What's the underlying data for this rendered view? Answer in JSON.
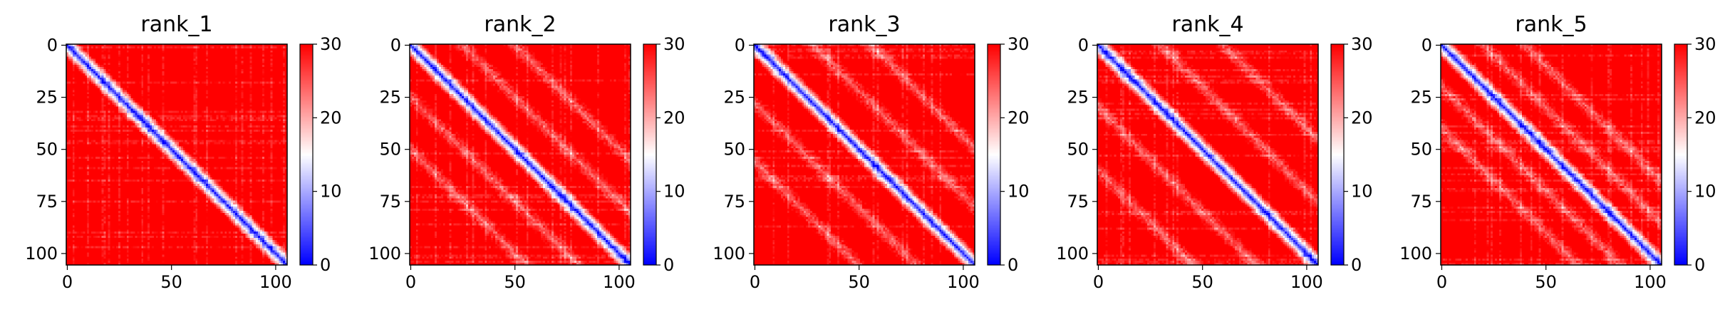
{
  "chart_data": [
    {
      "type": "heatmap",
      "title": "rank_1",
      "rows": 106,
      "cols": 106,
      "x_ticks": [
        0,
        50,
        100
      ],
      "y_ticks": [
        0,
        25,
        50,
        75,
        100
      ],
      "colorbar": {
        "min": 0,
        "max": 30,
        "ticks": [
          0,
          10,
          20,
          30
        ],
        "colormap": [
          "#0000ff",
          "#ffffff",
          "#ff0000"
        ]
      },
      "values_description_diag": "low (~0-5) along main diagonal, rising to ~30 off-diagonal",
      "band_width": 7.0,
      "secondary_band_offset": null
    },
    {
      "type": "heatmap",
      "title": "rank_2",
      "rows": 106,
      "cols": 106,
      "x_ticks": [
        0,
        50,
        100
      ],
      "y_ticks": [
        0,
        25,
        50,
        75,
        100
      ],
      "colorbar": {
        "min": 0,
        "max": 30,
        "ticks": [
          0,
          10,
          20,
          30
        ],
        "colormap": [
          "#0000ff",
          "#ffffff",
          "#ff0000"
        ]
      },
      "values_description_diag": "low along main diagonal with lighter parallel bands",
      "band_width": 7.0,
      "secondary_band_offset": 25
    },
    {
      "type": "heatmap",
      "title": "rank_3",
      "rows": 106,
      "cols": 106,
      "x_ticks": [
        0,
        50,
        100
      ],
      "y_ticks": [
        0,
        25,
        50,
        75,
        100
      ],
      "colorbar": {
        "min": 0,
        "max": 30,
        "ticks": [
          0,
          10,
          20,
          30
        ],
        "colormap": [
          "#0000ff",
          "#ffffff",
          "#ff0000"
        ]
      },
      "values_description_diag": "low along main diagonal with faint parallel bands",
      "band_width": 7.0,
      "secondary_band_offset": 28
    },
    {
      "type": "heatmap",
      "title": "rank_4",
      "rows": 106,
      "cols": 106,
      "x_ticks": [
        0,
        50,
        100
      ],
      "y_ticks": [
        0,
        25,
        50,
        75,
        100
      ],
      "colorbar": {
        "min": 0,
        "max": 30,
        "ticks": [
          0,
          10,
          20,
          30
        ],
        "colormap": [
          "#0000ff",
          "#ffffff",
          "#ff0000"
        ]
      },
      "values_description_diag": "low along main diagonal with faint parallel bands",
      "band_width": 7.0,
      "secondary_band_offset": 30
    },
    {
      "type": "heatmap",
      "title": "rank_5",
      "rows": 106,
      "cols": 106,
      "x_ticks": [
        0,
        50,
        100
      ],
      "y_ticks": [
        0,
        25,
        50,
        75,
        100
      ],
      "colorbar": {
        "min": 0,
        "max": 30,
        "ticks": [
          0,
          10,
          20,
          30
        ],
        "colormap": [
          "#0000ff",
          "#ffffff",
          "#ff0000"
        ]
      },
      "values_description_diag": "low along main diagonal with distinct parallel bands",
      "band_width": 7.0,
      "secondary_band_offset": 20
    }
  ]
}
